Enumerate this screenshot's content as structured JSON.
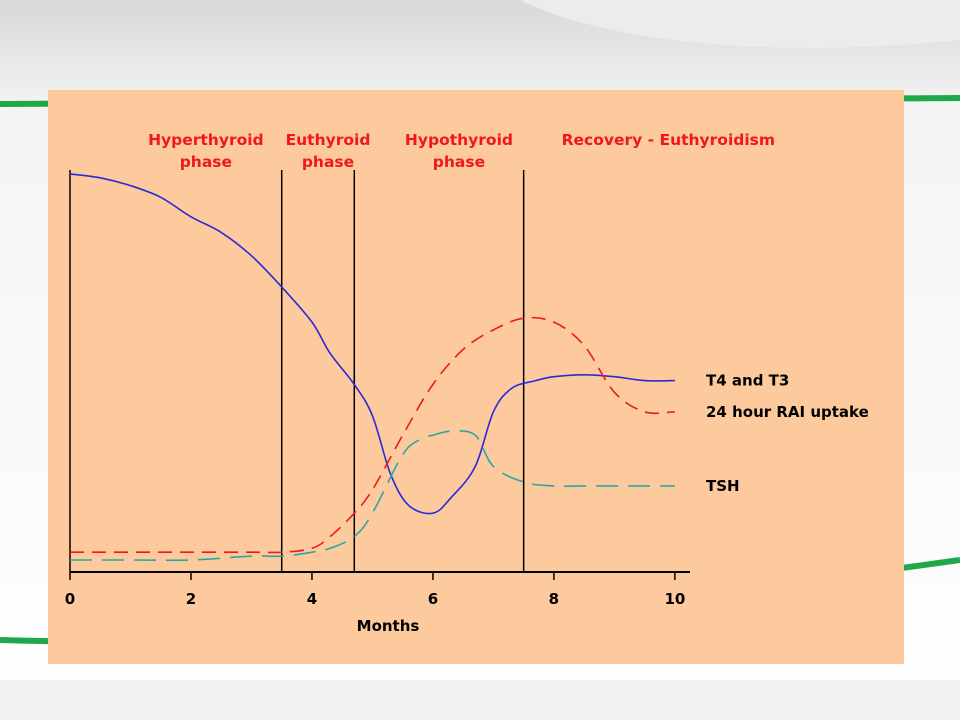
{
  "theme": {
    "panel_color": "#fcca9c",
    "accent_green": "#1ea84a",
    "label_red": "#f0181c"
  },
  "chart_data": {
    "type": "line",
    "title": "",
    "xlabel": "Months",
    "ylabel": "",
    "xlim": [
      0,
      10.25
    ],
    "x_ticks": [
      "0",
      "2",
      "4",
      "6",
      "8",
      "10"
    ],
    "grid": false,
    "legend": "labels at right end of lines",
    "phase_dividers": [
      0,
      3.5,
      4.7,
      7.5
    ],
    "phases": [
      {
        "line1": "Hyperthyroid",
        "line2": "phase",
        "color": "#f0181c"
      },
      {
        "line1": "Euthyroid",
        "line2": "phase",
        "color": "#f0181c"
      },
      {
        "line1": "Hypothyroid",
        "line2": "phase",
        "color": "#f0181c"
      },
      {
        "line1": "Recovery - Euthyroidism",
        "line2": "",
        "color": "#f0181c"
      }
    ],
    "series": [
      {
        "name": "T4 and T3",
        "color": "#2a2ad8",
        "dash": "solid",
        "x": [
          0,
          0.5,
          1,
          1.5,
          2,
          2.5,
          3,
          3.5,
          4,
          4.3,
          4.7,
          5,
          5.3,
          5.6,
          6,
          6.3,
          6.7,
          7,
          7.3,
          7.7,
          8,
          8.5,
          9,
          9.5,
          10
        ],
        "y": [
          0.99,
          0.98,
          0.96,
          0.93,
          0.88,
          0.84,
          0.78,
          0.7,
          0.61,
          0.53,
          0.45,
          0.37,
          0.22,
          0.14,
          0.12,
          0.16,
          0.24,
          0.38,
          0.44,
          0.46,
          0.47,
          0.475,
          0.47,
          0.46,
          0.46
        ]
      },
      {
        "name": "24 hour RAI uptake",
        "color": "#f0181c",
        "dash": "dashed",
        "x": [
          0,
          1,
          2,
          3,
          3.5,
          4,
          4.3,
          4.7,
          5,
          5.5,
          6,
          6.5,
          7,
          7.5,
          8,
          8.5,
          9,
          9.5,
          10
        ],
        "y": [
          0.02,
          0.02,
          0.02,
          0.02,
          0.02,
          0.03,
          0.06,
          0.12,
          0.18,
          0.32,
          0.45,
          0.54,
          0.59,
          0.62,
          0.61,
          0.55,
          0.43,
          0.38,
          0.38
        ]
      },
      {
        "name": "TSH",
        "color": "#2aa8a0",
        "dash": "long-dashed",
        "x": [
          0,
          1,
          2,
          3,
          3.5,
          4,
          4.3,
          4.7,
          5,
          5.5,
          5.8,
          6,
          6.3,
          6.7,
          7,
          7.5,
          8,
          8.5,
          9,
          9.5,
          10
        ],
        "y": [
          0.0,
          0.0,
          0.0,
          0.01,
          0.01,
          0.02,
          0.03,
          0.06,
          0.12,
          0.27,
          0.31,
          0.32,
          0.33,
          0.32,
          0.24,
          0.2,
          0.19,
          0.19,
          0.19,
          0.19,
          0.19
        ]
      }
    ]
  }
}
